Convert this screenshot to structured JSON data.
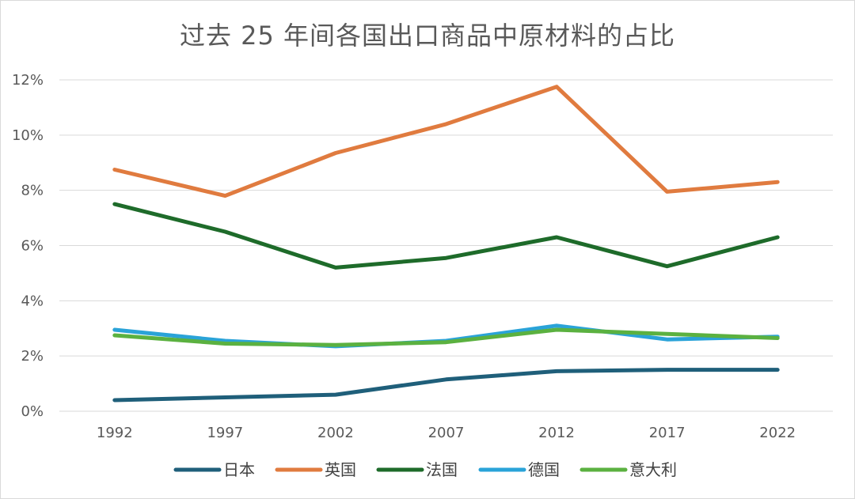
{
  "chart_data": {
    "type": "line",
    "title": "过去 25 年间各国出口商品中原材料的占比",
    "categories": [
      "1992",
      "1997",
      "2002",
      "2007",
      "2012",
      "2017",
      "2022"
    ],
    "ylim": [
      0,
      12
    ],
    "yticks": [
      0,
      2,
      4,
      6,
      8,
      10,
      12
    ],
    "ytick_labels": [
      "0%",
      "2%",
      "4%",
      "6%",
      "8%",
      "10%",
      "12%"
    ],
    "grid": true,
    "legend_position": "bottom",
    "series": [
      {
        "name": "日本",
        "color": "#1f5f7a",
        "values": [
          0.4,
          0.5,
          0.6,
          1.15,
          1.45,
          1.5,
          1.5
        ]
      },
      {
        "name": "英国",
        "color": "#e07b3f",
        "values": [
          8.75,
          7.8,
          9.35,
          10.4,
          11.75,
          7.95,
          8.3
        ]
      },
      {
        "name": "法国",
        "color": "#1e6b2a",
        "values": [
          7.5,
          6.5,
          5.2,
          5.55,
          6.3,
          5.25,
          6.3
        ]
      },
      {
        "name": "德国",
        "color": "#2aa3d8",
        "values": [
          2.95,
          2.55,
          2.35,
          2.55,
          3.1,
          2.6,
          2.7
        ]
      },
      {
        "name": "意大利",
        "color": "#5bb140",
        "values": [
          2.75,
          2.45,
          2.4,
          2.5,
          2.95,
          2.8,
          2.65
        ]
      }
    ]
  }
}
